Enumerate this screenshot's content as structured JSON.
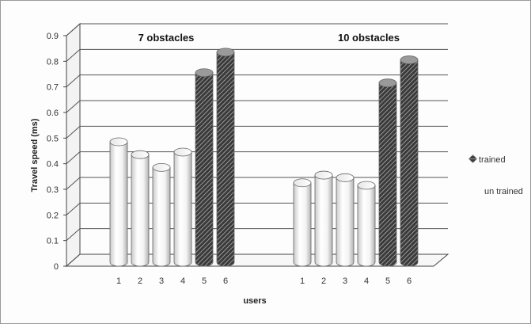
{
  "chart_data": {
    "type": "bar",
    "style": "3d-cylinder",
    "title": "",
    "xlabel": "users",
    "ylabel": "Travel speed (ms)",
    "ylim": [
      0,
      0.9
    ],
    "yticks": [
      "0",
      "0.1",
      "0.2",
      "0.3",
      "0.4",
      "0.5",
      "0.6",
      "0.7",
      "0.8",
      "0.9"
    ],
    "grid": true,
    "legend_position": "right",
    "groups": [
      {
        "label": "7 obstacles",
        "categories": [
          "1",
          "2",
          "3",
          "4",
          "5",
          "6"
        ],
        "values": [
          0.47,
          0.42,
          0.37,
          0.43,
          0.74,
          0.82
        ],
        "series": [
          "un trained",
          "un trained",
          "un trained",
          "un trained",
          "trained",
          "trained"
        ]
      },
      {
        "label": "10 obstacles",
        "categories": [
          "1",
          "2",
          "3",
          "4",
          "5",
          "6"
        ],
        "values": [
          0.31,
          0.34,
          0.33,
          0.3,
          0.7,
          0.79
        ],
        "series": [
          "un trained",
          "un trained",
          "un trained",
          "un trained",
          "trained",
          "trained"
        ]
      }
    ],
    "legend": [
      {
        "name": "trained",
        "pattern": "hatched-dark"
      },
      {
        "name": "un trained",
        "pattern": "plain-white"
      }
    ]
  }
}
